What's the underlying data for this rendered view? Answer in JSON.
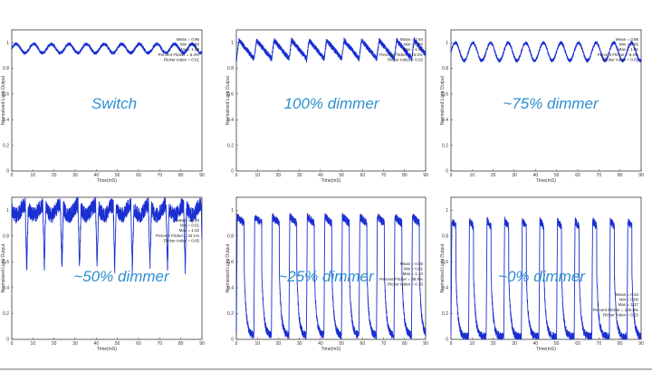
{
  "chart_data": [
    {
      "type": "line",
      "annotation": "Switch",
      "xlabel": "Time(mS)",
      "ylabel": "Normalized Light Output",
      "xlim": [
        0,
        90
      ],
      "ylim": [
        0,
        1.1
      ],
      "xticks": [
        0,
        10,
        20,
        30,
        40,
        50,
        60,
        70,
        80,
        90
      ],
      "yticks": [
        0,
        0.2,
        0.4,
        0.6,
        0.8,
        1
      ],
      "stats": [
        "Mean = 0.96",
        "Min = 0.90",
        "Max = 1.00",
        "Percent Flicker = 5.3%",
        "Flicker Index = 0.01"
      ],
      "series": [
        {
          "color": "#1a2fd0",
          "waveform": {
            "shape": "sine",
            "period_ms": 8.33,
            "low": 0.92,
            "high": 0.99,
            "noise": 0.012
          }
        }
      ]
    },
    {
      "type": "line",
      "annotation": "100% dimmer",
      "xlabel": "Time(mS)",
      "ylabel": "Normalized Light Output",
      "xlim": [
        0,
        90
      ],
      "ylim": [
        0,
        1.1
      ],
      "xticks": [
        0,
        10,
        20,
        30,
        40,
        50,
        60,
        70,
        80,
        90
      ],
      "yticks": [
        0,
        0.2,
        0.4,
        0.6,
        0.8,
        1
      ],
      "stats": [
        "Mean = 0.94",
        "Min = 0.86",
        "Max = 1.04",
        "Percent Flicker = 10.0%",
        "Flicker Index = 0.02"
      ],
      "series": [
        {
          "color": "#1a2fd0",
          "waveform": {
            "shape": "saw",
            "period_ms": 8.33,
            "low": 0.86,
            "high": 1.02,
            "noise": 0.02
          }
        }
      ]
    },
    {
      "type": "line",
      "annotation": "~75% dimmer",
      "xlabel": "Time(mS)",
      "ylabel": "Normalized Light Output",
      "xlim": [
        0,
        90
      ],
      "ylim": [
        0,
        1.1
      ],
      "xticks": [
        0,
        10,
        20,
        30,
        40,
        50,
        60,
        70,
        80,
        90
      ],
      "yticks": [
        0,
        0.2,
        0.4,
        0.6,
        0.8,
        1
      ],
      "stats": [
        "Mean = 0.96",
        "Min = 0.85",
        "Max = 1.01",
        "Percent Flicker = 8.3%",
        "Flicker Index = 0.02"
      ],
      "series": [
        {
          "color": "#1a2fd0",
          "waveform": {
            "shape": "sine",
            "period_ms": 8.33,
            "low": 0.86,
            "high": 1.0,
            "noise": 0.012
          }
        }
      ]
    },
    {
      "type": "line",
      "annotation": "~50% dimmer",
      "xlabel": "Time(mS)",
      "ylabel": "Normalized Light Output",
      "xlim": [
        0,
        90
      ],
      "ylim": [
        0,
        1.1
      ],
      "xticks": [
        0,
        10,
        20,
        30,
        40,
        50,
        60,
        70,
        80,
        90
      ],
      "yticks": [
        0,
        0.2,
        0.4,
        0.6,
        0.8,
        1
      ],
      "stats": [
        "Mean = 0.90",
        "Min = 0.51",
        "Max = 1.02",
        "Percent Flicker = 33.1%",
        "Flicker Index = 0.05"
      ],
      "series": [
        {
          "color": "#1a2fd0",
          "waveform": {
            "shape": "dip",
            "period_ms": 8.33,
            "low": 0.55,
            "high": 1.0,
            "noise": 0.06
          }
        }
      ]
    },
    {
      "type": "line",
      "annotation": "~25% dimmer",
      "xlabel": "Time(mS)",
      "ylabel": "Normalized Light Output",
      "xlim": [
        0,
        90
      ],
      "ylim": [
        0,
        1.1
      ],
      "xticks": [
        0,
        10,
        20,
        30,
        40,
        50,
        60,
        70,
        80,
        90
      ],
      "yticks": [
        0,
        0.2,
        0.4,
        0.6,
        0.8,
        1
      ],
      "stats": [
        "Mean = 0.59",
        "Min = 0.01",
        "Max = 1.10",
        "Percent Flicker = 98.9%",
        "Flicker Index = 0.30"
      ],
      "series": [
        {
          "color": "#1a2fd0",
          "waveform": {
            "shape": "pulse",
            "period_ms": 8.33,
            "low": 0.03,
            "high": 0.95,
            "duty": 0.45,
            "noise": 0.03
          }
        }
      ]
    },
    {
      "type": "line",
      "annotation": "~0% dimmer",
      "xlabel": "Time(mS)",
      "ylabel": "Normalized Light Output",
      "xlim": [
        0,
        90
      ],
      "ylim": [
        0,
        1.1
      ],
      "xticks": [
        0,
        10,
        20,
        30,
        40,
        50,
        60,
        70,
        80,
        90
      ],
      "yticks": [
        0,
        0.2,
        0.4,
        0.6,
        0.8,
        1
      ],
      "stats": [
        "Mean = 0.34",
        "Min = 0.00",
        "Max = 1.17",
        "Percent Flicker = 100.0%",
        "Flicker Index = 0.52"
      ],
      "series": [
        {
          "color": "#1a2fd0",
          "waveform": {
            "shape": "pulse",
            "period_ms": 8.33,
            "low": 0.02,
            "high": 0.92,
            "duty": 0.28,
            "noise": 0.03
          }
        }
      ]
    }
  ]
}
